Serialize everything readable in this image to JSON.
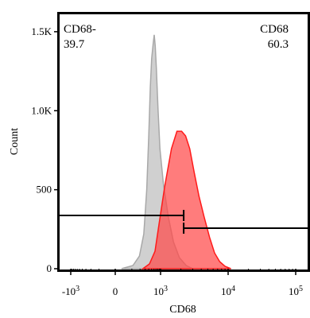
{
  "chart_data": {
    "type": "histogram",
    "xlabel": "CD68",
    "ylabel": "Count",
    "x_scale": "biexponential",
    "ylim": [
      0,
      1600
    ],
    "y_ticks": [
      {
        "value": 0,
        "label": "0"
      },
      {
        "value": 500,
        "label": "500"
      },
      {
        "value": 1000,
        "label": "1.0K"
      },
      {
        "value": 1500,
        "label": "1.5K"
      }
    ],
    "x_ticks": [
      {
        "value": -1000,
        "base": "-10",
        "exp": "3"
      },
      {
        "value": 0,
        "base": "0",
        "exp": ""
      },
      {
        "value": 1000,
        "base": "10",
        "exp": "3"
      },
      {
        "value": 10000,
        "base": "10",
        "exp": "4"
      },
      {
        "value": 100000,
        "base": "10",
        "exp": "5"
      }
    ],
    "gates": [
      {
        "label": "CD68-",
        "value": "39.7",
        "x_range": [
          -1900,
          2200
        ],
        "position": "top-left"
      },
      {
        "label": "CD68",
        "value": "60.3",
        "x_range": [
          2200,
          200000
        ],
        "position": "top-right"
      }
    ],
    "series": [
      {
        "color": "#c8c8c8",
        "stroke": "#a8a8a8",
        "points": [
          [
            30,
            0
          ],
          [
            110,
            20
          ],
          [
            190,
            80
          ],
          [
            270,
            220
          ],
          [
            340,
            500
          ],
          [
            400,
            850
          ],
          [
            450,
            1150
          ],
          [
            500,
            1330
          ],
          [
            560,
            1420
          ],
          [
            610,
            1480
          ],
          [
            660,
            1410
          ],
          [
            720,
            1270
          ],
          [
            820,
            1010
          ],
          [
            950,
            760
          ],
          [
            1100,
            540
          ],
          [
            1300,
            330
          ],
          [
            1550,
            170
          ],
          [
            1900,
            70
          ],
          [
            2400,
            20
          ],
          [
            3000,
            0
          ]
        ]
      },
      {
        "color": "#ff4a4a",
        "stroke": "#ff1a1a",
        "points": [
          [
            250,
            0
          ],
          [
            420,
            30
          ],
          [
            650,
            110
          ],
          [
            900,
            290
          ],
          [
            1150,
            520
          ],
          [
            1450,
            760
          ],
          [
            1750,
            870
          ],
          [
            2050,
            870
          ],
          [
            2350,
            840
          ],
          [
            2700,
            760
          ],
          [
            3150,
            610
          ],
          [
            3700,
            460
          ],
          [
            4400,
            330
          ],
          [
            5300,
            200
          ],
          [
            6300,
            100
          ],
          [
            7500,
            45
          ],
          [
            9000,
            15
          ],
          [
            11000,
            0
          ]
        ]
      }
    ]
  }
}
